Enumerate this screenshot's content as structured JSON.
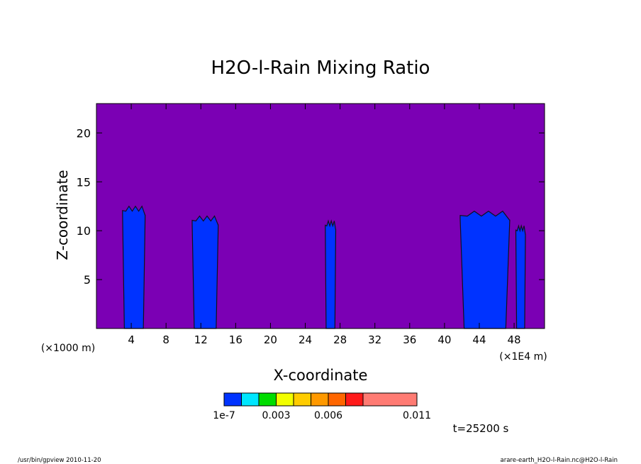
{
  "chart_data": {
    "type": "heatmap",
    "title": "H2O-l-Rain Mixing Ratio",
    "xlabel": "X-coordinate",
    "ylabel": "Z-coordinate",
    "x_unit_left": "(×1000 m)",
    "x_unit_right": "(×1E4 m)",
    "xlim": [
      0,
      51.5
    ],
    "ylim": [
      0,
      23
    ],
    "x_ticks": [
      4,
      8,
      12,
      16,
      20,
      24,
      28,
      32,
      36,
      40,
      44,
      48
    ],
    "y_ticks": [
      5,
      10,
      15,
      20
    ],
    "background_color": "#7b00b4",
    "colorbar": {
      "colors": [
        "#0033ff",
        "#00e6ff",
        "#00dd00",
        "#f2ff00",
        "#ffcc00",
        "#ff9900",
        "#ff6600",
        "#ff1a1a",
        "#ff7b73"
      ],
      "labels": [
        "1e-7",
        "0.003",
        "0.006",
        "0.011"
      ]
    },
    "rain_columns": [
      {
        "x_from": 3.0,
        "x_to": 5.6,
        "z_top": 12.5
      },
      {
        "x_from": 11.0,
        "x_to": 14.0,
        "z_top": 11.5
      },
      {
        "x_from": 26.3,
        "x_to": 27.5,
        "z_top": 11.0
      },
      {
        "x_from": 41.8,
        "x_to": 47.5,
        "z_top": 12.0
      },
      {
        "x_from": 48.2,
        "x_to": 49.3,
        "z_top": 10.5
      }
    ],
    "time_label": "t=25200 s"
  },
  "footer": {
    "left": "/usr/bin/gpview   2010-11-20",
    "right": "arare-earth_H2O-l-Rain.nc@H2O-l-Rain"
  }
}
